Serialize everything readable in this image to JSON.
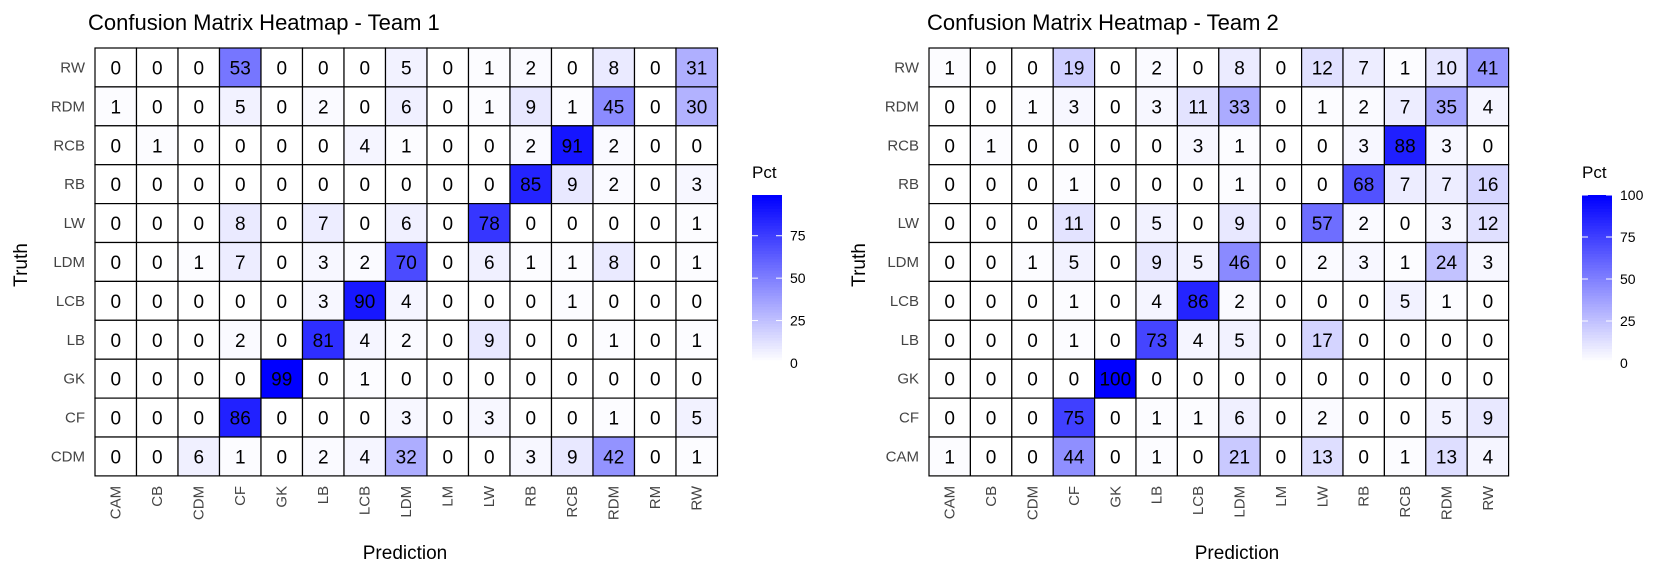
{
  "chart_data": [
    {
      "type": "heatmap",
      "title": "Confusion Matrix Heatmap - Team 1",
      "xlabel": "Prediction",
      "ylabel": "Truth",
      "x_categories": [
        "CAM",
        "CB",
        "CDM",
        "CF",
        "GK",
        "LB",
        "LCB",
        "LDM",
        "LM",
        "LW",
        "RB",
        "RCB",
        "RDM",
        "RM",
        "RW"
      ],
      "y_categories": [
        "RW",
        "RDM",
        "RCB",
        "RB",
        "LW",
        "LDM",
        "LCB",
        "LB",
        "GK",
        "CF",
        "CDM"
      ],
      "values": [
        [
          0,
          0,
          0,
          53,
          0,
          0,
          0,
          5,
          0,
          1,
          2,
          0,
          8,
          0,
          31
        ],
        [
          1,
          0,
          0,
          5,
          0,
          2,
          0,
          6,
          0,
          1,
          9,
          1,
          45,
          0,
          30
        ],
        [
          0,
          1,
          0,
          0,
          0,
          0,
          4,
          1,
          0,
          0,
          2,
          91,
          2,
          0,
          0
        ],
        [
          0,
          0,
          0,
          0,
          0,
          0,
          0,
          0,
          0,
          0,
          85,
          9,
          2,
          0,
          3
        ],
        [
          0,
          0,
          0,
          8,
          0,
          7,
          0,
          6,
          0,
          78,
          0,
          0,
          0,
          0,
          1
        ],
        [
          0,
          0,
          1,
          7,
          0,
          3,
          2,
          70,
          0,
          6,
          1,
          1,
          8,
          0,
          1
        ],
        [
          0,
          0,
          0,
          0,
          0,
          3,
          90,
          4,
          0,
          0,
          0,
          1,
          0,
          0,
          0
        ],
        [
          0,
          0,
          0,
          2,
          0,
          81,
          4,
          2,
          0,
          9,
          0,
          0,
          1,
          0,
          1
        ],
        [
          0,
          0,
          0,
          0,
          99,
          0,
          1,
          0,
          0,
          0,
          0,
          0,
          0,
          0,
          0
        ],
        [
          0,
          0,
          0,
          86,
          0,
          0,
          0,
          3,
          0,
          3,
          0,
          0,
          1,
          0,
          5
        ],
        [
          0,
          0,
          6,
          1,
          0,
          2,
          4,
          32,
          0,
          0,
          3,
          9,
          42,
          0,
          1
        ]
      ],
      "legend": {
        "title": "Pct",
        "ticks": [
          0,
          25,
          50,
          75
        ],
        "range": [
          0,
          99
        ],
        "placement": "right",
        "low_color": "#ffffff",
        "high_color": "#0000ff"
      }
    },
    {
      "type": "heatmap",
      "title": "Confusion Matrix Heatmap - Team 2",
      "xlabel": "Prediction",
      "ylabel": "Truth",
      "x_categories": [
        "CAM",
        "CB",
        "CDM",
        "CF",
        "GK",
        "LB",
        "LCB",
        "LDM",
        "LM",
        "LW",
        "RB",
        "RCB",
        "RDM",
        "RW"
      ],
      "y_categories": [
        "RW",
        "RDM",
        "RCB",
        "RB",
        "LW",
        "LDM",
        "LCB",
        "LB",
        "GK",
        "CF",
        "CAM"
      ],
      "values": [
        [
          1,
          0,
          0,
          19,
          0,
          2,
          0,
          8,
          0,
          12,
          7,
          1,
          10,
          41
        ],
        [
          0,
          0,
          1,
          3,
          0,
          3,
          11,
          33,
          0,
          1,
          2,
          7,
          35,
          4
        ],
        [
          0,
          1,
          0,
          0,
          0,
          0,
          3,
          1,
          0,
          0,
          3,
          88,
          3,
          0
        ],
        [
          0,
          0,
          0,
          1,
          0,
          0,
          0,
          1,
          0,
          0,
          68,
          7,
          7,
          16
        ],
        [
          0,
          0,
          0,
          11,
          0,
          5,
          0,
          9,
          0,
          57,
          2,
          0,
          3,
          12
        ],
        [
          0,
          0,
          1,
          5,
          0,
          9,
          5,
          46,
          0,
          2,
          3,
          1,
          24,
          3
        ],
        [
          0,
          0,
          0,
          1,
          0,
          4,
          86,
          2,
          0,
          0,
          0,
          5,
          1,
          0
        ],
        [
          0,
          0,
          0,
          1,
          0,
          73,
          4,
          5,
          0,
          17,
          0,
          0,
          0,
          0
        ],
        [
          0,
          0,
          0,
          0,
          100,
          0,
          0,
          0,
          0,
          0,
          0,
          0,
          0,
          0
        ],
        [
          0,
          0,
          0,
          75,
          0,
          1,
          1,
          6,
          0,
          2,
          0,
          0,
          5,
          9
        ],
        [
          1,
          0,
          0,
          44,
          0,
          1,
          0,
          21,
          0,
          13,
          0,
          1,
          13,
          4
        ]
      ],
      "legend": {
        "title": "Pct",
        "ticks": [
          0,
          25,
          50,
          75,
          100
        ],
        "range": [
          0,
          100
        ],
        "placement": "right",
        "low_color": "#ffffff",
        "high_color": "#0000ff"
      }
    }
  ]
}
